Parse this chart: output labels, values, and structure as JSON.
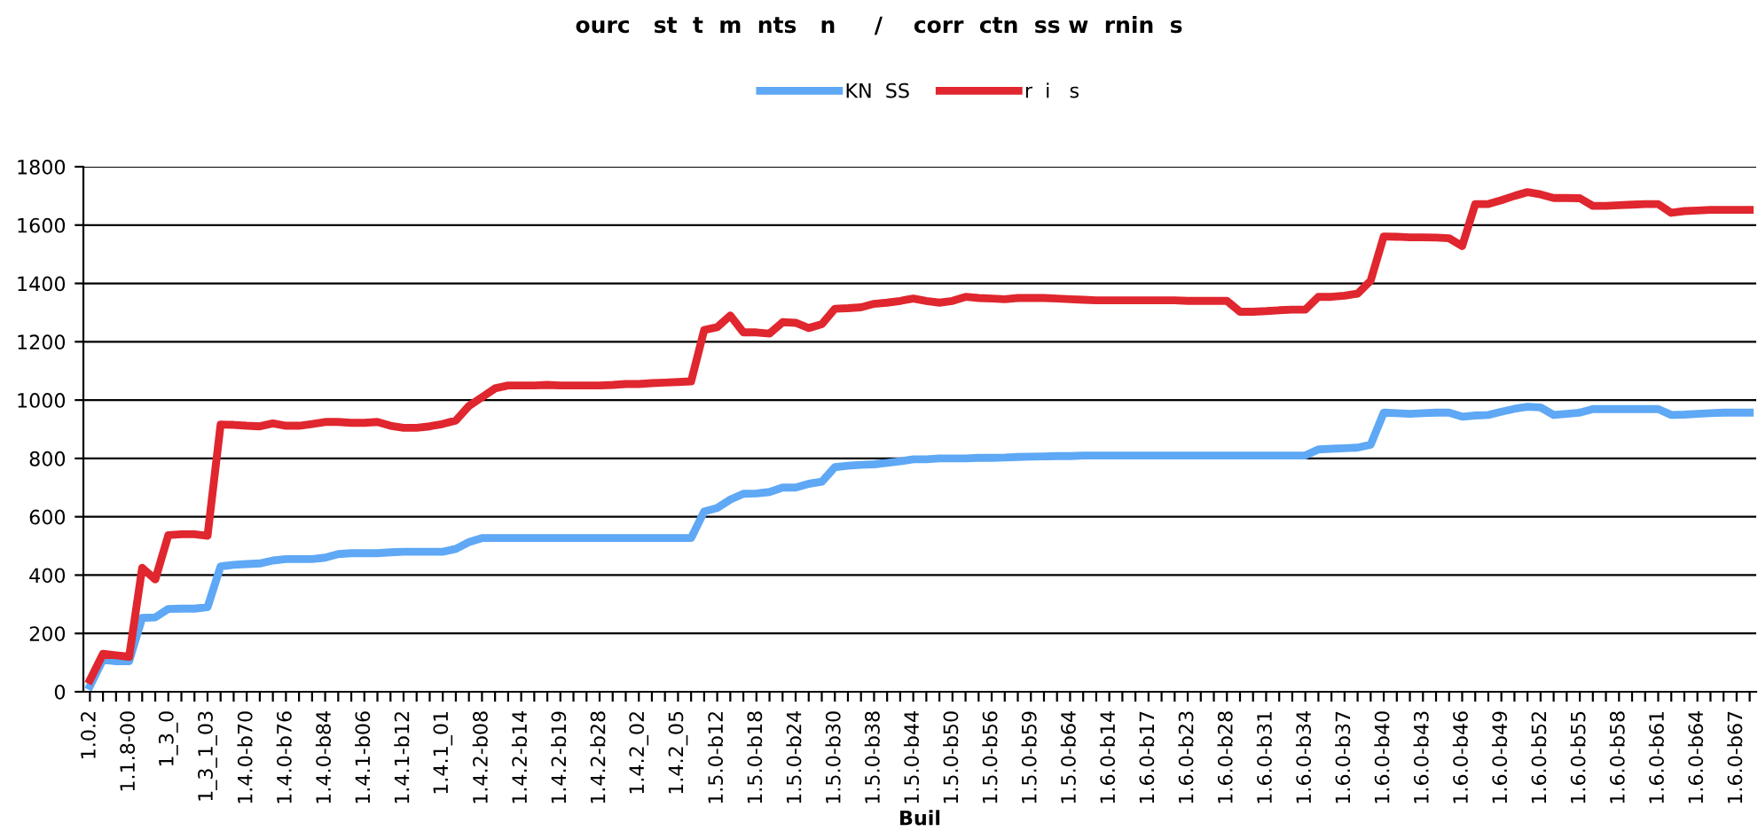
{
  "chart_data": {
    "type": "line",
    "title": "ourc   st  t  m  nts   n     /    corr  ctn  ss w  rnin  s",
    "xlabel": "Buil",
    "categories": [
      "1.0.2",
      null,
      null,
      "1.1.8-00",
      null,
      null,
      "1_3_0",
      null,
      null,
      "1_3_1_03",
      null,
      null,
      "1.4.0-b70",
      null,
      null,
      "1.4.0-b76",
      null,
      null,
      "1.4.0-b84",
      null,
      null,
      "1.4.1-b06",
      null,
      null,
      "1.4.1-b12",
      null,
      null,
      "1.4.1_01",
      null,
      null,
      "1.4.2-b08",
      null,
      null,
      "1.4.2-b14",
      null,
      null,
      "1.4.2-b19",
      null,
      null,
      "1.4.2-b28",
      null,
      null,
      "1.4.2_02",
      null,
      null,
      "1.4.2_05",
      null,
      null,
      "1.5.0-b12",
      null,
      null,
      "1.5.0-b18",
      null,
      null,
      "1.5.0-b24",
      null,
      null,
      "1.5.0-b30",
      null,
      null,
      "1.5.0-b38",
      null,
      null,
      "1.5.0-b44",
      null,
      null,
      "1.5.0-b50",
      null,
      null,
      "1.5.0-b56",
      null,
      null,
      "1.5.0-b59",
      null,
      null,
      "1.5.0-b64",
      null,
      null,
      "1.6.0-b14",
      null,
      null,
      "1.6.0-b17",
      null,
      null,
      "1.6.0-b23",
      null,
      null,
      "1.6.0-b28",
      null,
      null,
      "1.6.0-b31",
      null,
      null,
      "1.6.0-b34",
      null,
      null,
      "1.6.0-b37",
      null,
      null,
      "1.6.0-b40",
      null,
      null,
      "1.6.0-b43",
      null,
      null,
      "1.6.0-b46",
      null,
      null,
      "1.6.0-b49",
      null,
      null,
      "1.6.0-b52",
      null,
      null,
      "1.6.0-b55",
      null,
      null,
      "1.6.0-b58",
      null,
      null,
      "1.6.0-b61",
      null,
      null,
      "1.6.0-b64",
      null,
      null,
      "1.6.0-b67",
      null
    ],
    "series": [
      {
        "name": "KN  SS",
        "color": "#5ea8f5",
        "values": [
          20,
          110,
          105,
          105,
          253,
          255,
          284,
          285,
          285,
          290,
          430,
          435,
          438,
          440,
          450,
          455,
          455,
          455,
          460,
          472,
          475,
          475,
          475,
          478,
          480,
          480,
          480,
          480,
          490,
          513,
          527,
          527,
          527,
          527,
          527,
          527,
          527,
          527,
          527,
          527,
          527,
          527,
          527,
          527,
          527,
          527,
          527,
          618,
          630,
          659,
          679,
          680,
          685,
          700,
          700,
          713,
          720,
          770,
          775,
          778,
          780,
          785,
          790,
          797,
          797,
          800,
          800,
          800,
          802,
          802,
          803,
          805,
          806,
          807,
          808,
          808,
          810,
          810,
          810,
          810,
          810,
          810,
          810,
          810,
          810,
          810,
          810,
          810,
          810,
          810,
          810,
          810,
          810,
          810,
          831,
          833,
          835,
          837,
          847,
          957,
          955,
          953,
          955,
          957,
          957,
          943,
          947,
          949,
          960,
          970,
          977,
          975,
          949,
          953,
          957,
          969,
          969,
          969,
          969,
          969,
          969,
          949,
          950,
          953,
          955,
          957,
          957,
          957
        ]
      },
      {
        "name": "r  i   s",
        "color": "#e0262e",
        "values": [
          40,
          130,
          125,
          120,
          425,
          385,
          537,
          540,
          540,
          535,
          916,
          915,
          912,
          910,
          920,
          912,
          912,
          918,
          925,
          925,
          922,
          922,
          925,
          912,
          905,
          905,
          910,
          918,
          930,
          980,
          1010,
          1040,
          1050,
          1050,
          1050,
          1052,
          1050,
          1050,
          1050,
          1050,
          1052,
          1055,
          1055,
          1058,
          1060,
          1062,
          1064,
          1240,
          1250,
          1290,
          1232,
          1232,
          1228,
          1267,
          1265,
          1247,
          1260,
          1313,
          1315,
          1318,
          1330,
          1334,
          1340,
          1348,
          1340,
          1334,
          1340,
          1354,
          1350,
          1348,
          1346,
          1350,
          1350,
          1350,
          1348,
          1346,
          1344,
          1342,
          1342,
          1342,
          1342,
          1342,
          1342,
          1342,
          1340,
          1340,
          1340,
          1340,
          1303,
          1303,
          1305,
          1308,
          1310,
          1310,
          1354,
          1354,
          1358,
          1365,
          1410,
          1561,
          1560,
          1558,
          1558,
          1557,
          1555,
          1528,
          1672,
          1672,
          1685,
          1700,
          1713,
          1705,
          1693,
          1693,
          1692,
          1666,
          1666,
          1668,
          1670,
          1672,
          1672,
          1642,
          1648,
          1650,
          1652,
          1652,
          1652,
          1652
        ]
      }
    ],
    "ylim": [
      0,
      1800
    ],
    "yticks": [
      0,
      200,
      400,
      600,
      800,
      1000,
      1200,
      1400,
      1600,
      1800
    ],
    "grid": "y",
    "legend": "top",
    "marker": "none",
    "line_style": "solid"
  }
}
